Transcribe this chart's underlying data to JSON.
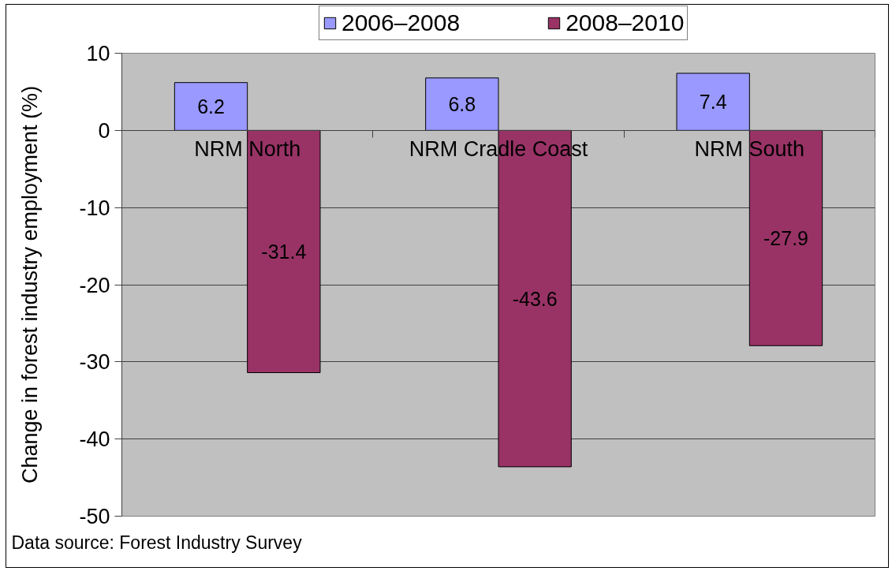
{
  "chart_data": {
    "type": "bar",
    "categories": [
      "NRM North",
      "NRM Cradle Coast",
      "NRM South"
    ],
    "series": [
      {
        "name": "2006–2008",
        "color": "#9999ff",
        "values": [
          6.2,
          6.8,
          7.4
        ]
      },
      {
        "name": "2008–2010",
        "color": "#993366",
        "values": [
          -31.4,
          -43.6,
          -27.9
        ]
      }
    ],
    "ylabel": "Change in forest industry employment (%)",
    "ylim": [
      -50,
      10
    ],
    "yticks": [
      -50,
      -40,
      -30,
      -20,
      -10,
      0,
      10
    ],
    "grid": "y",
    "legend": "top",
    "data_labels": true,
    "annotations": [
      "Data source: Forest Industry Survey"
    ]
  }
}
